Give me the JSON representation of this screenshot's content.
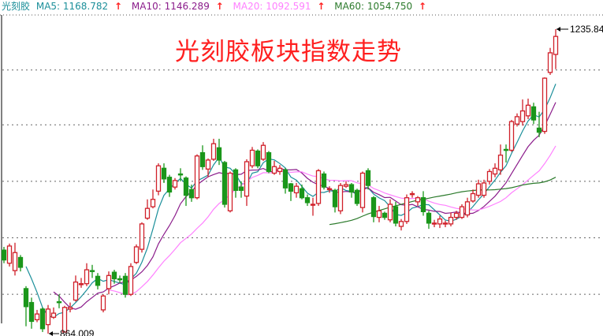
{
  "header": {
    "name": "光刻胶",
    "ma": [
      {
        "label": "MA5: 1168.782",
        "color": "#1b8f9a",
        "arrow": "↑"
      },
      {
        "label": "MA10: 1146.289",
        "color": "#8b1c8b",
        "arrow": "↑"
      },
      {
        "label": "MA20: 1092.591",
        "color": "#ff80ff",
        "arrow": "↑"
      },
      {
        "label": "MA60: 1054.750",
        "color": "#2b7a2b",
        "arrow": "↑"
      }
    ]
  },
  "chart_data": {
    "type": "candlestick",
    "title": "光刻胶板块指数走势",
    "max_label": "1235.84",
    "min_label": "864.009",
    "max_index": 100,
    "min_index": 8,
    "ylim": [
      864.009,
      1235.84
    ],
    "grid": true,
    "grid_levels": [
      912,
      981,
      1050,
      1119,
      1186,
      1253
    ],
    "colors": {
      "up": "#d0202a",
      "down": "#1a961a",
      "ma5": "#1b8f9a",
      "ma10": "#8b1c8b",
      "ma20": "#ff80ff",
      "ma60": "#2b7a2b",
      "title": "#ff2020"
    },
    "ma_periods": [
      5,
      10,
      20,
      60
    ],
    "ohlc": [
      [
        966,
        970,
        950,
        954
      ],
      [
        950,
        974,
        946,
        971
      ],
      [
        941,
        975,
        935,
        963
      ],
      [
        957,
        960,
        940,
        945
      ],
      [
        919,
        922,
        873,
        897
      ],
      [
        902,
        908,
        870,
        879
      ],
      [
        881,
        893,
        878,
        888
      ],
      [
        894,
        896,
        866,
        870
      ],
      [
        875,
        899,
        864.009,
        894
      ],
      [
        884,
        896,
        882,
        889
      ],
      [
        903,
        912,
        895,
        902
      ],
      [
        866,
        898,
        866,
        896
      ],
      [
        894,
        902,
        890,
        896
      ],
      [
        905,
        935,
        903,
        927
      ],
      [
        924,
        932,
        920,
        925
      ],
      [
        925,
        950,
        922,
        942
      ],
      [
        941,
        948,
        932,
        940
      ],
      [
        934,
        938,
        918,
        923
      ],
      [
        893,
        912,
        890,
        910
      ],
      [
        919,
        940,
        912,
        935
      ],
      [
        939,
        942,
        925,
        931
      ],
      [
        931,
        935,
        926,
        930
      ],
      [
        934,
        938,
        908,
        912
      ],
      [
        912,
        950,
        910,
        946
      ],
      [
        951,
        973,
        949,
        970
      ],
      [
        967,
        1000,
        963,
        998
      ],
      [
        1005,
        1028,
        1003,
        1017
      ],
      [
        1019,
        1040,
        1017,
        1028
      ],
      [
        1038,
        1072,
        1033,
        1069
      ],
      [
        1066,
        1072,
        1048,
        1053
      ],
      [
        1055,
        1058,
        1031,
        1037
      ],
      [
        1043,
        1054,
        1040,
        1051
      ],
      [
        1059,
        1066,
        1050,
        1058
      ],
      [
        1054,
        1056,
        1020,
        1033
      ],
      [
        1040,
        1046,
        1025,
        1030
      ],
      [
        1030,
        1083,
        1028,
        1081
      ],
      [
        1085,
        1094,
        1064,
        1068
      ],
      [
        1065,
        1078,
        1055,
        1076
      ],
      [
        1077,
        1102,
        1075,
        1096
      ],
      [
        1091,
        1102,
        1070,
        1076
      ],
      [
        1073,
        1075,
        1018,
        1022
      ],
      [
        1014,
        1062,
        1012,
        1060
      ],
      [
        1064,
        1066,
        1030,
        1039
      ],
      [
        1043,
        1050,
        1030,
        1039
      ],
      [
        1032,
        1077,
        1020,
        1074
      ],
      [
        1069,
        1092,
        1066,
        1088
      ],
      [
        1087,
        1089,
        1066,
        1069
      ],
      [
        1077,
        1098,
        1075,
        1094
      ],
      [
        1085,
        1087,
        1060,
        1062
      ],
      [
        1060,
        1075,
        1058,
        1068
      ],
      [
        1062,
        1070,
        1058,
        1066
      ],
      [
        1064,
        1066,
        1035,
        1042
      ],
      [
        1047,
        1048,
        1026,
        1038
      ],
      [
        1036,
        1048,
        1030,
        1044
      ],
      [
        1041,
        1046,
        1028,
        1030
      ],
      [
        1030,
        1034,
        1020,
        1024
      ],
      [
        1022,
        1030,
        1008,
        1022
      ],
      [
        1023,
        1065,
        1020,
        1063
      ],
      [
        1059,
        1062,
        1040,
        1043
      ],
      [
        1040,
        1044,
        1036,
        1041
      ],
      [
        1039,
        1041,
        1012,
        1019
      ],
      [
        1014,
        1048,
        1010,
        1045
      ],
      [
        1044,
        1050,
        1042,
        1046
      ],
      [
        1046,
        1048,
        1030,
        1037
      ],
      [
        1039,
        1041,
        1020,
        1023
      ],
      [
        1018,
        1062,
        1012,
        1060
      ],
      [
        1063,
        1066,
        1040,
        1045
      ],
      [
        1030,
        1032,
        1000,
        1007
      ],
      [
        1006,
        1020,
        1000,
        1014
      ],
      [
        1011,
        1013,
        1003,
        1006
      ],
      [
        1003,
        1028,
        1000,
        1022
      ],
      [
        1019,
        1025,
        995,
        999
      ],
      [
        995,
        1004,
        990,
        1001
      ],
      [
        1001,
        1034,
        998,
        1030
      ],
      [
        1034,
        1038,
        1030,
        1035
      ],
      [
        1025,
        1032,
        1020,
        1030
      ],
      [
        1030,
        1038,
        1008,
        1013
      ],
      [
        1011,
        1014,
        992,
        999
      ],
      [
        998,
        1003,
        994,
        999
      ],
      [
        998,
        1008,
        993,
        1004
      ],
      [
        998,
        1002,
        994,
        999
      ],
      [
        998,
        1012,
        995,
        1006
      ],
      [
        1006,
        1014,
        1003,
        1011
      ],
      [
        1006,
        1022,
        1004,
        1019
      ],
      [
        1009,
        1030,
        1006,
        1025
      ],
      [
        1026,
        1040,
        1024,
        1035
      ],
      [
        1033,
        1052,
        1030,
        1047
      ],
      [
        1033,
        1052,
        1030,
        1048
      ],
      [
        1050,
        1065,
        1046,
        1062
      ],
      [
        1059,
        1072,
        1055,
        1066
      ],
      [
        1064,
        1095,
        1058,
        1082
      ],
      [
        1089,
        1095,
        1073,
        1088
      ],
      [
        1088,
        1125,
        1086,
        1123
      ],
      [
        1120,
        1133,
        1117,
        1129
      ],
      [
        1123,
        1150,
        1118,
        1136
      ],
      [
        1130,
        1151,
        1126,
        1143
      ],
      [
        1141,
        1146,
        1120,
        1125
      ],
      [
        1115,
        1135,
        1104,
        1110
      ],
      [
        1111,
        1177,
        1108,
        1176
      ],
      [
        1183,
        1213,
        1180,
        1207
      ],
      [
        1205,
        1235.84,
        1187,
        1227
      ]
    ]
  }
}
